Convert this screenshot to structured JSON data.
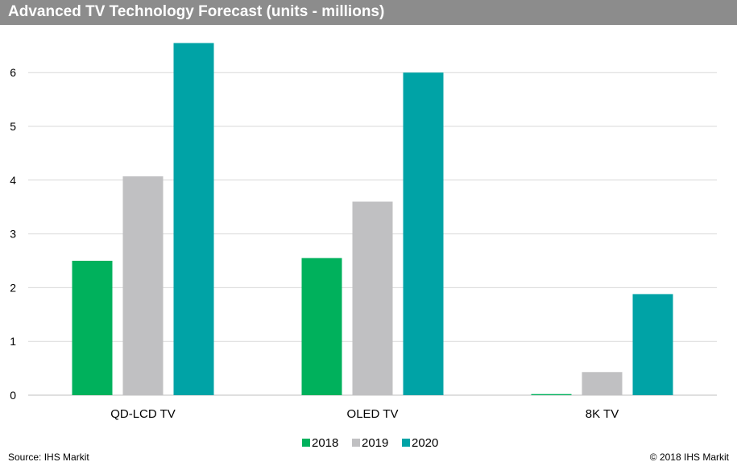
{
  "title": "Advanced TV Technology Forecast (units - millions)",
  "source": "Source: IHS Markit",
  "copyright": "© 2018 IHS Markit",
  "chart_data": {
    "type": "bar",
    "title": "Advanced TV Technology Forecast (units - millions)",
    "xlabel": "",
    "ylabel": "",
    "categories": [
      "QD-LCD TV",
      "OLED TV",
      "8K TV"
    ],
    "ylim": [
      0,
      6.5
    ],
    "yticks": [
      0,
      1,
      2,
      3,
      4,
      5,
      6
    ],
    "grid": true,
    "legend_position": "bottom",
    "series": [
      {
        "name": "2018",
        "color": "#00b15c",
        "values": [
          2.5,
          2.55,
          0.02
        ]
      },
      {
        "name": "2019",
        "color": "#c0c0c2",
        "values": [
          4.07,
          3.6,
          0.43
        ]
      },
      {
        "name": "2020",
        "color": "#00a3a6",
        "values": [
          6.55,
          6.0,
          1.88
        ]
      }
    ]
  }
}
